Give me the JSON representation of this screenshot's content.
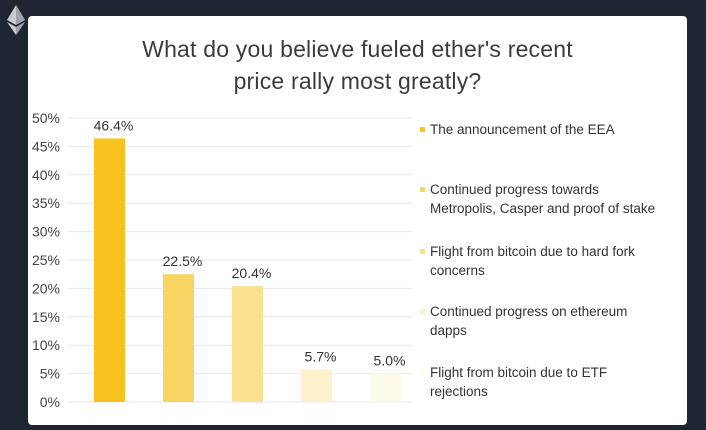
{
  "chart_data": {
    "type": "bar",
    "title_lines": [
      "What do you believe fueled ether's recent",
      "price rally most greatly?"
    ],
    "categories": [
      "The announcement of the EEA",
      "Continued progress towards Metropolis, Casper and proof of stake",
      "Flight from bitcoin due to hard fork concerns",
      "Continued progress on ethereum dapps",
      "Flight from bitcoin due to ETF rejections"
    ],
    "legend_lines": [
      [
        "The announcement of the EEA"
      ],
      [
        "Continued progress towards",
        "Metropolis, Casper and proof of stake"
      ],
      [
        "Flight from bitcoin due to hard fork",
        "concerns"
      ],
      [
        "Continued progress on ethereum",
        "dapps"
      ],
      [
        "Flight from bitcoin due to ETF",
        "rejections"
      ]
    ],
    "values": [
      46.4,
      22.5,
      20.4,
      5.7,
      5.0
    ],
    "value_labels": [
      "46.4%",
      "22.5%",
      "20.4%",
      "5.7%",
      "5.0%"
    ],
    "colors": [
      "#f7c11e",
      "#fad462",
      "#fbe092",
      "#fdf1cd",
      "#fefae9"
    ],
    "yticks": [
      "0%",
      "5%",
      "10%",
      "15%",
      "20%",
      "25%",
      "30%",
      "35%",
      "40%",
      "45%",
      "50%"
    ],
    "ylim": [
      0,
      50
    ],
    "grid": true,
    "legend_position": "right",
    "xlabel": "",
    "ylabel": ""
  }
}
